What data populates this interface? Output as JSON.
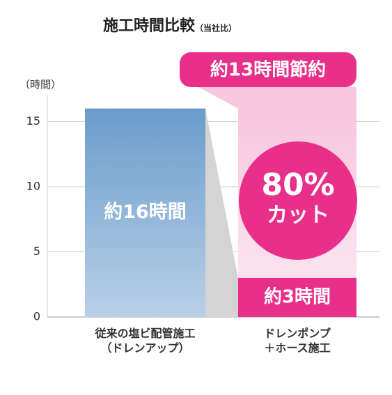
{
  "chart_data": {
    "type": "bar",
    "title": "施工時間比較",
    "subtitle": "（当社比）",
    "y_label": "（時間）",
    "categories": [
      "従来の塩ビ配管施工\n（ドレンアップ）",
      "ドレンポンプ\n＋ホース施工"
    ],
    "values": [
      16,
      3
    ],
    "value_labels": [
      "約16時間",
      "約3時間"
    ],
    "colors": [
      "#6f9fce",
      "#e8308a"
    ],
    "ylim": [
      0,
      17
    ],
    "yticks": [
      0,
      5,
      10,
      15
    ],
    "grid": true,
    "annotations": {
      "savings": "約13時間節約",
      "reduction": "80%",
      "reduction_sub": "カット"
    }
  }
}
